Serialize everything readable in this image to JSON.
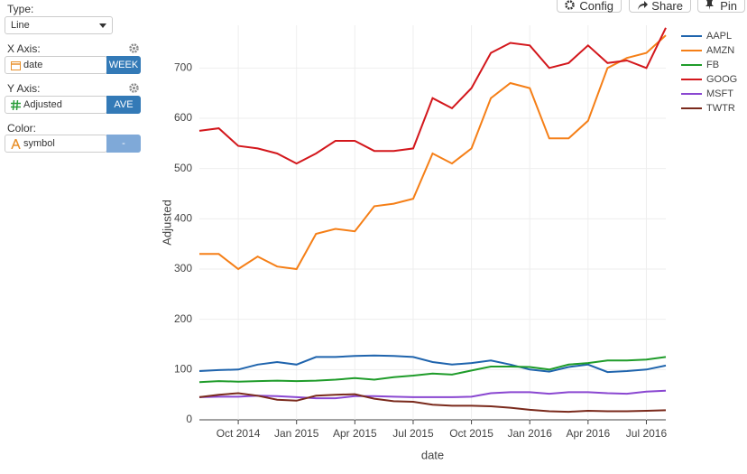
{
  "controls": {
    "type": {
      "label": "Type:",
      "value": "Line"
    },
    "x_axis": {
      "label": "X Axis:",
      "field": "date",
      "agg": "WEEK"
    },
    "y_axis": {
      "label": "Y Axis:",
      "field": "Adjusted",
      "agg": "AVE"
    },
    "color": {
      "label": "Color:",
      "field": "symbol",
      "agg": "-"
    }
  },
  "toolbar": [
    "Config",
    "Share",
    "Pin"
  ],
  "chart_data": {
    "type": "line",
    "x_label": "date",
    "y_label": "Adjusted",
    "x": [
      "2014-08",
      "2014-09",
      "2014-10",
      "2014-11",
      "2014-12",
      "2015-01",
      "2015-02",
      "2015-03",
      "2015-04",
      "2015-05",
      "2015-06",
      "2015-07",
      "2015-08",
      "2015-09",
      "2015-10",
      "2015-11",
      "2015-12",
      "2016-01",
      "2016-02",
      "2016-03",
      "2016-04",
      "2016-05",
      "2016-06",
      "2016-07",
      "2016-08"
    ],
    "xlim": [
      "2014-08",
      "2016-08"
    ],
    "xticks": [
      {
        "value": "2014-10",
        "label": "Oct 2014"
      },
      {
        "value": "2015-01",
        "label": "Jan 2015"
      },
      {
        "value": "2015-04",
        "label": "Apr 2015"
      },
      {
        "value": "2015-07",
        "label": "Jul 2015"
      },
      {
        "value": "2015-10",
        "label": "Oct 2015"
      },
      {
        "value": "2016-01",
        "label": "Jan 2016"
      },
      {
        "value": "2016-04",
        "label": "Apr 2016"
      },
      {
        "value": "2016-07",
        "label": "Jul 2016"
      }
    ],
    "ylim": [
      0,
      785
    ],
    "yticks": [
      0,
      100,
      200,
      300,
      400,
      500,
      600,
      700
    ],
    "grid": true,
    "legend": "top-right",
    "series": [
      {
        "name": "AAPL",
        "color": "#1f64ad",
        "values": [
          97,
          99,
          100,
          110,
          115,
          110,
          125,
          125,
          127,
          128,
          127,
          125,
          115,
          110,
          113,
          118,
          110,
          100,
          96,
          105,
          110,
          95,
          97,
          100,
          108
        ]
      },
      {
        "name": "AMZN",
        "color": "#f57f17",
        "values": [
          330,
          330,
          300,
          325,
          305,
          300,
          370,
          380,
          375,
          425,
          430,
          440,
          530,
          510,
          540,
          640,
          670,
          660,
          560,
          560,
          595,
          700,
          720,
          730,
          765
        ]
      },
      {
        "name": "FB",
        "color": "#1f9c2a",
        "values": [
          75,
          77,
          76,
          77,
          78,
          77,
          78,
          80,
          83,
          80,
          85,
          88,
          92,
          90,
          98,
          106,
          106,
          105,
          100,
          110,
          113,
          118,
          118,
          120,
          125
        ]
      },
      {
        "name": "GOOG",
        "color": "#d3171c",
        "values": [
          575,
          580,
          545,
          540,
          530,
          510,
          530,
          555,
          555,
          535,
          535,
          540,
          640,
          620,
          660,
          730,
          750,
          745,
          700,
          710,
          745,
          710,
          715,
          700,
          780
        ]
      },
      {
        "name": "MSFT",
        "color": "#8a47d1",
        "values": [
          45,
          46,
          46,
          48,
          47,
          45,
          43,
          43,
          47,
          47,
          46,
          45,
          45,
          45,
          46,
          53,
          55,
          55,
          52,
          55,
          55,
          53,
          52,
          56,
          58
        ]
      },
      {
        "name": "TWTR",
        "color": "#7a2a1c",
        "values": [
          45,
          50,
          53,
          48,
          40,
          38,
          48,
          50,
          51,
          42,
          37,
          36,
          30,
          28,
          28,
          27,
          24,
          20,
          17,
          16,
          18,
          17,
          17,
          18,
          19
        ]
      }
    ]
  }
}
